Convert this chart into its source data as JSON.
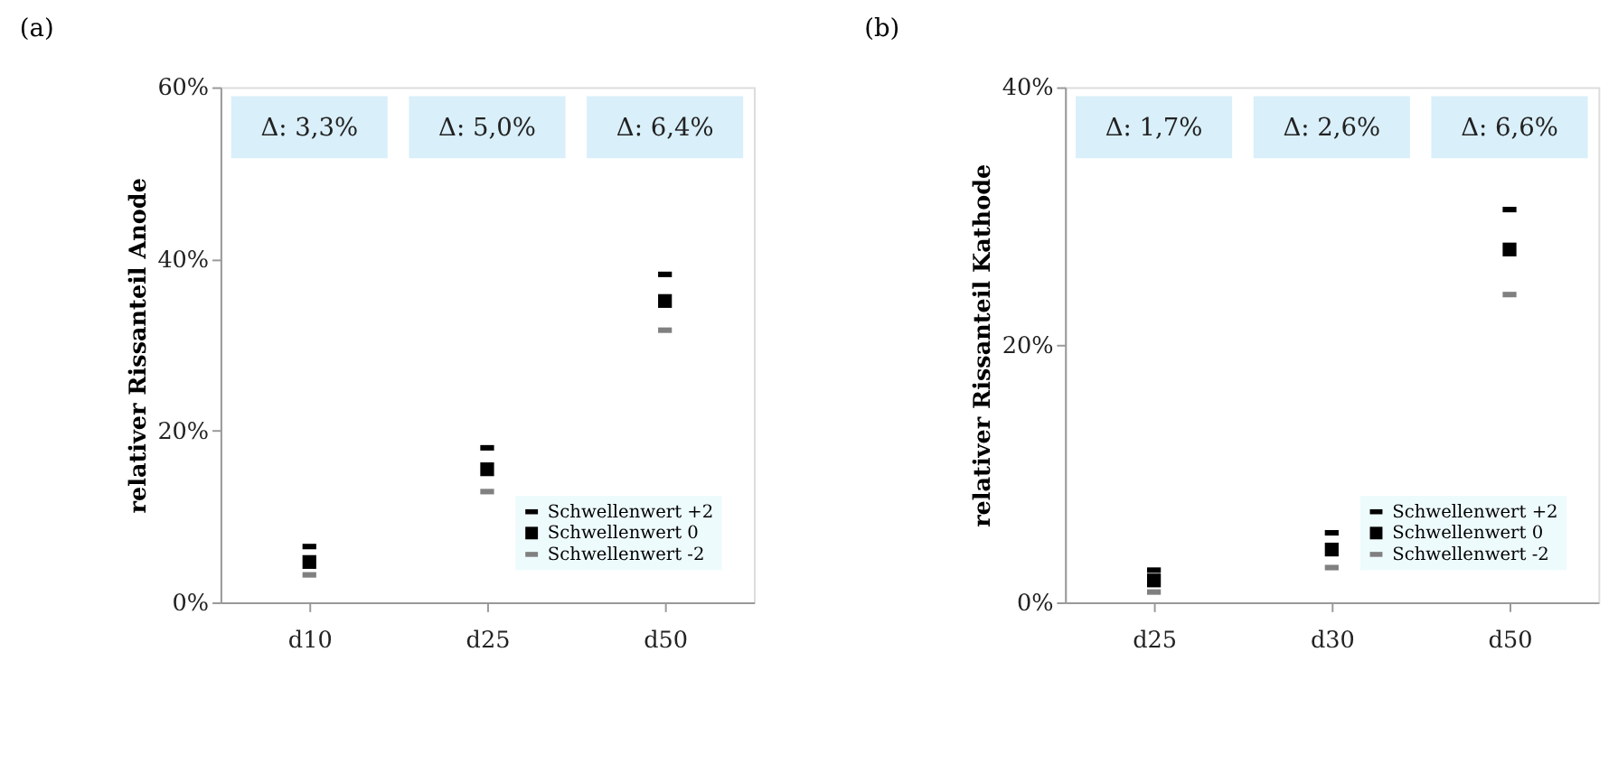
{
  "chart_data": [
    {
      "type": "scatter",
      "title": "(a)",
      "ylabel": "relativer Rissanteil Anode",
      "categories": [
        "d10",
        "d25",
        "d50"
      ],
      "series": [
        {
          "name": "Schwellenwert +2",
          "color": "#000000",
          "values": [
            6.5,
            18.0,
            38.2
          ]
        },
        {
          "name": "Schwellenwert 0",
          "color": "#000000",
          "marker": "square",
          "values": [
            4.7,
            15.5,
            35.1
          ]
        },
        {
          "name": "Schwellenwert -2",
          "color": "#808080",
          "values": [
            3.2,
            12.9,
            31.7
          ]
        }
      ],
      "ylim": [
        0,
        60
      ],
      "yticks": [
        {
          "value": 0,
          "label": "0%"
        },
        {
          "value": 20,
          "label": "20%"
        },
        {
          "value": 40,
          "label": "40%"
        },
        {
          "value": 60,
          "label": "60%"
        }
      ],
      "annotations": [
        "Δ: 3,3%",
        "Δ: 5,0%",
        "Δ: 6,4%"
      ],
      "legend": "bottom right",
      "grid": false
    },
    {
      "type": "scatter",
      "title": "(b)",
      "ylabel": "relativer Rissanteil Kathode",
      "categories": [
        "d25",
        "d30",
        "d50"
      ],
      "series": [
        {
          "name": "Schwellenwert +2",
          "color": "#000000",
          "values": [
            2.5,
            5.4,
            30.5
          ]
        },
        {
          "name": "Schwellenwert 0",
          "color": "#000000",
          "marker": "square",
          "values": [
            1.7,
            4.1,
            27.4
          ]
        },
        {
          "name": "Schwellenwert -2",
          "color": "#808080",
          "values": [
            0.8,
            2.7,
            23.9
          ]
        }
      ],
      "ylim": [
        0,
        40
      ],
      "yticks": [
        {
          "value": 0,
          "label": "0%"
        },
        {
          "value": 20,
          "label": "20%"
        },
        {
          "value": 40,
          "label": "40%"
        }
      ],
      "annotations": [
        "Δ: 1,7%",
        "Δ: 2,6%",
        "Δ: 6,6%"
      ],
      "legend": "bottom right",
      "grid": false
    }
  ]
}
